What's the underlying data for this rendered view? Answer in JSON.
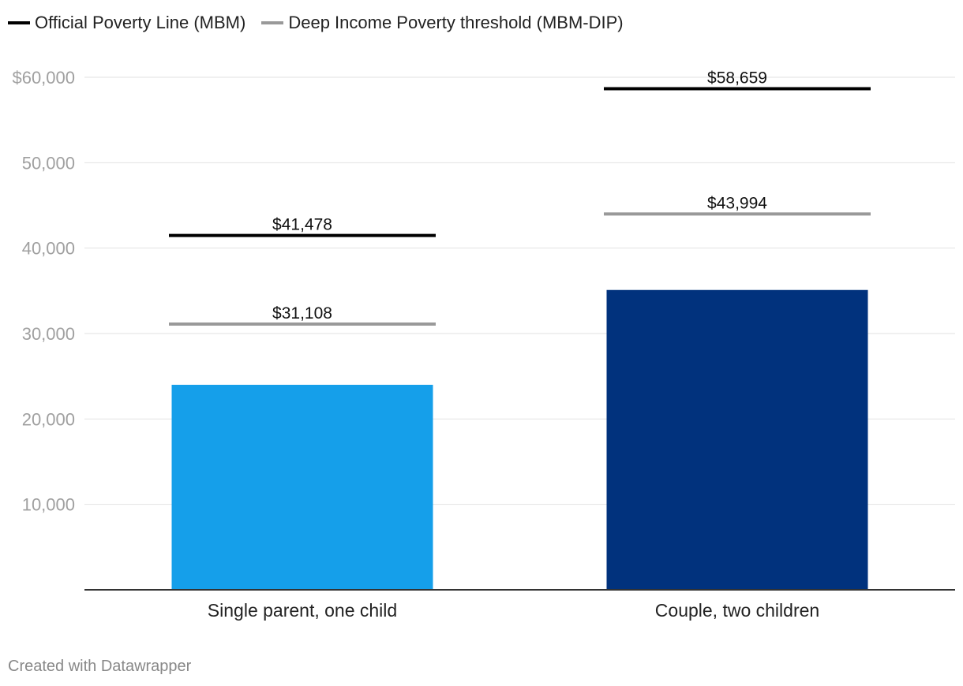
{
  "legend": {
    "items": [
      {
        "label": "Official Poverty Line (MBM)",
        "color": "#000000"
      },
      {
        "label": "Deep Income Poverty threshold (MBM-DIP)",
        "color": "#999999"
      }
    ]
  },
  "footer": {
    "credit": "Created with Datawrapper"
  },
  "chart_data": {
    "type": "bar",
    "title": "",
    "xlabel": "",
    "ylabel": "",
    "ylim": [
      0,
      60000
    ],
    "yticks": [
      {
        "value": 10000,
        "label": "10,000"
      },
      {
        "value": 20000,
        "label": "20,000"
      },
      {
        "value": 30000,
        "label": "30,000"
      },
      {
        "value": 40000,
        "label": "40,000"
      },
      {
        "value": 50000,
        "label": "50,000"
      },
      {
        "value": 60000,
        "label": "$60,000"
      }
    ],
    "categories": [
      "Single parent, one child",
      "Couple, two children"
    ],
    "bar_colors": [
      "#159fea",
      "#01327d"
    ],
    "series": [
      {
        "name": "Income",
        "values": [
          24000,
          35100
        ]
      },
      {
        "name": "Official Poverty Line (MBM)",
        "values": [
          41478,
          58659
        ],
        "labels": [
          "$41,478",
          "$58,659"
        ],
        "color": "#000000"
      },
      {
        "name": "Deep Income Poverty threshold (MBM-DIP)",
        "values": [
          31108,
          43994
        ],
        "labels": [
          "$31,108",
          "$43,994"
        ],
        "color": "#999999"
      }
    ],
    "grid": true,
    "legend_position": "top-left"
  }
}
